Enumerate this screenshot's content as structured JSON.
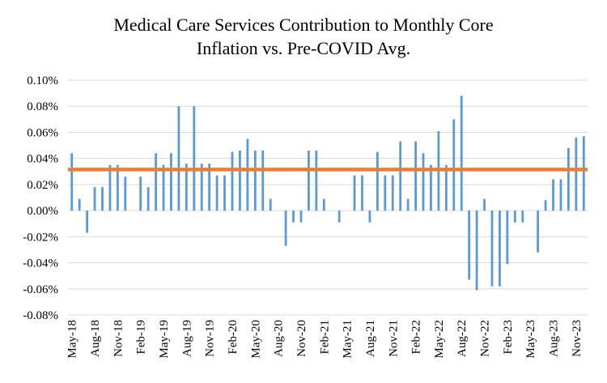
{
  "chart_data": {
    "type": "bar",
    "title": [
      "Medical Care Services Contribution to Monthly Core",
      "Inflation vs. Pre-COVID Avg."
    ],
    "xlabel": "",
    "ylabel": "",
    "ylim": [
      -0.08,
      0.1
    ],
    "yticks": [
      0.1,
      0.08,
      0.06,
      0.04,
      0.02,
      0.0,
      -0.02,
      -0.04,
      -0.06,
      -0.08
    ],
    "ytick_labels": [
      "0.10%",
      "0.08%",
      "0.06%",
      "0.04%",
      "0.02%",
      "0.00%",
      "-0.02%",
      "-0.04%",
      "-0.06%",
      "-0.08%"
    ],
    "x_tick_labels": [
      {
        "index": 0,
        "label": "May-18"
      },
      {
        "index": 3,
        "label": "Aug-18"
      },
      {
        "index": 6,
        "label": "Nov-18"
      },
      {
        "index": 9,
        "label": "Feb-19"
      },
      {
        "index": 12,
        "label": "May-19"
      },
      {
        "index": 15,
        "label": "Aug-19"
      },
      {
        "index": 18,
        "label": "Nov-19"
      },
      {
        "index": 21,
        "label": "Feb-20"
      },
      {
        "index": 24,
        "label": "May-20"
      },
      {
        "index": 27,
        "label": "Aug-20"
      },
      {
        "index": 30,
        "label": "Nov-20"
      },
      {
        "index": 33,
        "label": "Feb-21"
      },
      {
        "index": 36,
        "label": "May-21"
      },
      {
        "index": 39,
        "label": "Aug-21"
      },
      {
        "index": 42,
        "label": "Nov-21"
      },
      {
        "index": 45,
        "label": "Feb-22"
      },
      {
        "index": 48,
        "label": "May-22"
      },
      {
        "index": 51,
        "label": "Aug-22"
      },
      {
        "index": 54,
        "label": "Nov-22"
      },
      {
        "index": 57,
        "label": "Feb-23"
      },
      {
        "index": 60,
        "label": "May-23"
      },
      {
        "index": 63,
        "label": "Aug-23"
      },
      {
        "index": 66,
        "label": "Nov-23"
      }
    ],
    "series": [
      {
        "name": "Medical Care Services Contribution",
        "type": "bar",
        "color": "#5B9BD5",
        "values": [
          0.044,
          0.009,
          -0.017,
          0.018,
          0.018,
          0.035,
          0.035,
          0.026,
          0.0,
          0.026,
          0.018,
          0.044,
          0.035,
          0.044,
          0.08,
          0.036,
          0.08,
          0.036,
          0.036,
          0.027,
          0.027,
          0.045,
          0.046,
          0.055,
          0.046,
          0.046,
          0.009,
          0.0,
          -0.027,
          -0.009,
          -0.009,
          0.046,
          0.046,
          0.009,
          0.0,
          -0.009,
          0.0,
          0.027,
          0.027,
          -0.009,
          0.045,
          0.027,
          0.027,
          0.053,
          0.009,
          0.053,
          0.044,
          0.035,
          0.061,
          0.035,
          0.07,
          0.088,
          -0.053,
          -0.061,
          0.009,
          -0.058,
          -0.058,
          -0.041,
          -0.009,
          -0.009,
          0.0,
          -0.032,
          0.008,
          0.024,
          0.024,
          0.048,
          0.056,
          0.057
        ]
      },
      {
        "name": "Pre-COVID Avg.",
        "type": "line",
        "color": "#ED7D31",
        "value": 0.0315
      }
    ],
    "grid": true,
    "legend": "none"
  }
}
